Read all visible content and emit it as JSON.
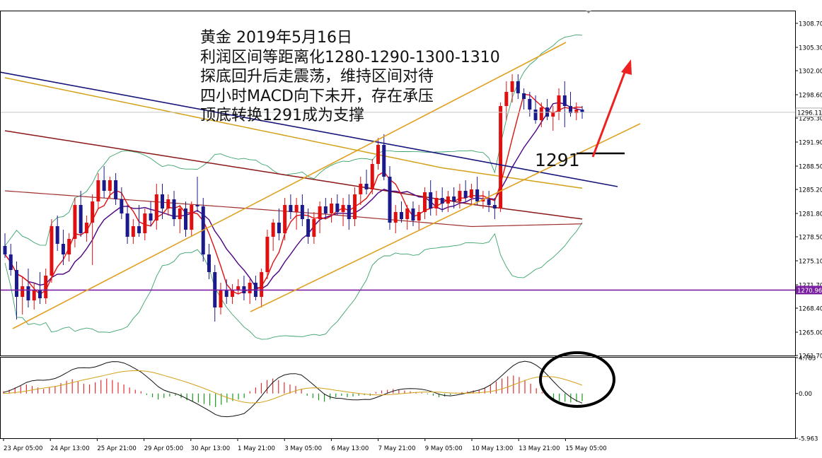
{
  "annotation": {
    "lines": [
      "黄金 2019年5月16日",
      "利润区间等距离化1280-1290-1300-1310",
      "探底回升后走震荡，维持区间对待",
      "四小时MACD向下未开，存在承压",
      "顶底转换1291成为支撑"
    ],
    "level_label": "1291"
  },
  "chart_data": [
    {
      "type": "candlestick",
      "title": "",
      "y_ticks": [
        "1308.70",
        "1305.30",
        "1302.00",
        "1298.60",
        "1295.30",
        "1291.90",
        "1288.50",
        "1285.20",
        "1281.80",
        "1278.50",
        "1275.10",
        "1271.70",
        "1268.40",
        "1265.00",
        "1261.70"
      ],
      "ylim": [
        1261.7,
        1310.5
      ],
      "current_price_label": "1296.11",
      "current_price": 1296.11,
      "support_price_label": "1270.96",
      "support_price": 1270.96,
      "candles": [
        {
          "o": 1277.2,
          "h": 1279.0,
          "l": 1275.5,
          "c": 1276.0
        },
        {
          "o": 1276.0,
          "h": 1277.5,
          "l": 1273.0,
          "c": 1273.8
        },
        {
          "o": 1273.8,
          "h": 1275.0,
          "l": 1266.8,
          "c": 1270.0
        },
        {
          "o": 1270.0,
          "h": 1272.8,
          "l": 1267.5,
          "c": 1271.5
        },
        {
          "o": 1271.5,
          "h": 1274.0,
          "l": 1268.5,
          "c": 1269.5
        },
        {
          "o": 1269.5,
          "h": 1272.0,
          "l": 1268.2,
          "c": 1271.0
        },
        {
          "o": 1271.0,
          "h": 1273.5,
          "l": 1269.0,
          "c": 1269.8
        },
        {
          "o": 1269.8,
          "h": 1274.0,
          "l": 1269.0,
          "c": 1273.0
        },
        {
          "o": 1273.0,
          "h": 1281.0,
          "l": 1272.0,
          "c": 1280.0
        },
        {
          "o": 1280.0,
          "h": 1281.5,
          "l": 1276.5,
          "c": 1277.5
        },
        {
          "o": 1277.5,
          "h": 1279.5,
          "l": 1274.5,
          "c": 1276.0
        },
        {
          "o": 1276.0,
          "h": 1279.0,
          "l": 1275.0,
          "c": 1278.2
        },
        {
          "o": 1278.2,
          "h": 1284.0,
          "l": 1277.0,
          "c": 1283.0
        },
        {
          "o": 1283.0,
          "h": 1285.0,
          "l": 1278.5,
          "c": 1279.0
        },
        {
          "o": 1279.0,
          "h": 1281.5,
          "l": 1277.8,
          "c": 1280.5
        },
        {
          "o": 1280.5,
          "h": 1284.5,
          "l": 1274.5,
          "c": 1283.5
        },
        {
          "o": 1283.5,
          "h": 1287.5,
          "l": 1282.5,
          "c": 1286.5
        },
        {
          "o": 1286.5,
          "h": 1288.5,
          "l": 1284.0,
          "c": 1285.0
        },
        {
          "o": 1285.0,
          "h": 1287.0,
          "l": 1284.0,
          "c": 1286.5
        },
        {
          "o": 1286.5,
          "h": 1287.5,
          "l": 1283.0,
          "c": 1283.8
        },
        {
          "o": 1283.8,
          "h": 1285.5,
          "l": 1281.0,
          "c": 1281.8
        },
        {
          "o": 1281.8,
          "h": 1283.0,
          "l": 1277.5,
          "c": 1278.5
        },
        {
          "o": 1278.5,
          "h": 1281.0,
          "l": 1277.5,
          "c": 1280.0
        },
        {
          "o": 1280.0,
          "h": 1283.0,
          "l": 1278.5,
          "c": 1279.0
        },
        {
          "o": 1279.0,
          "h": 1282.5,
          "l": 1278.0,
          "c": 1281.8
        },
        {
          "o": 1281.8,
          "h": 1283.5,
          "l": 1280.0,
          "c": 1280.8
        },
        {
          "o": 1280.8,
          "h": 1286.0,
          "l": 1279.5,
          "c": 1284.5
        },
        {
          "o": 1284.5,
          "h": 1286.0,
          "l": 1281.0,
          "c": 1282.5
        },
        {
          "o": 1282.5,
          "h": 1284.5,
          "l": 1281.5,
          "c": 1283.8
        },
        {
          "o": 1283.8,
          "h": 1285.0,
          "l": 1280.0,
          "c": 1281.0
        },
        {
          "o": 1281.0,
          "h": 1283.0,
          "l": 1279.0,
          "c": 1282.5
        },
        {
          "o": 1282.5,
          "h": 1283.5,
          "l": 1278.5,
          "c": 1279.5
        },
        {
          "o": 1279.5,
          "h": 1283.5,
          "l": 1278.5,
          "c": 1283.0
        },
        {
          "o": 1283.0,
          "h": 1287.0,
          "l": 1282.0,
          "c": 1282.8
        },
        {
          "o": 1282.8,
          "h": 1284.0,
          "l": 1275.0,
          "c": 1276.0
        },
        {
          "o": 1276.0,
          "h": 1277.5,
          "l": 1272.5,
          "c": 1273.5
        },
        {
          "o": 1273.5,
          "h": 1274.5,
          "l": 1266.5,
          "c": 1268.5
        },
        {
          "o": 1268.5,
          "h": 1272.0,
          "l": 1267.5,
          "c": 1271.0
        },
        {
          "o": 1271.0,
          "h": 1272.5,
          "l": 1269.0,
          "c": 1270.0
        },
        {
          "o": 1270.0,
          "h": 1271.8,
          "l": 1269.0,
          "c": 1271.0
        },
        {
          "o": 1271.0,
          "h": 1272.5,
          "l": 1270.5,
          "c": 1271.5
        },
        {
          "o": 1271.5,
          "h": 1273.0,
          "l": 1269.5,
          "c": 1270.5
        },
        {
          "o": 1270.5,
          "h": 1272.5,
          "l": 1269.0,
          "c": 1272.0
        },
        {
          "o": 1272.0,
          "h": 1273.0,
          "l": 1269.5,
          "c": 1270.0
        },
        {
          "o": 1270.0,
          "h": 1274.0,
          "l": 1268.5,
          "c": 1273.5
        },
        {
          "o": 1273.5,
          "h": 1279.5,
          "l": 1272.5,
          "c": 1278.5
        },
        {
          "o": 1278.5,
          "h": 1281.0,
          "l": 1276.5,
          "c": 1280.5
        },
        {
          "o": 1280.5,
          "h": 1282.5,
          "l": 1278.0,
          "c": 1279.0
        },
        {
          "o": 1279.0,
          "h": 1284.0,
          "l": 1278.0,
          "c": 1283.0
        },
        {
          "o": 1283.0,
          "h": 1284.5,
          "l": 1281.0,
          "c": 1282.0
        },
        {
          "o": 1282.0,
          "h": 1284.0,
          "l": 1279.5,
          "c": 1283.0
        },
        {
          "o": 1283.0,
          "h": 1284.5,
          "l": 1280.0,
          "c": 1281.0
        },
        {
          "o": 1281.0,
          "h": 1282.5,
          "l": 1277.5,
          "c": 1278.5
        },
        {
          "o": 1278.5,
          "h": 1282.0,
          "l": 1277.5,
          "c": 1281.0
        },
        {
          "o": 1281.0,
          "h": 1283.5,
          "l": 1279.0,
          "c": 1282.8
        },
        {
          "o": 1282.8,
          "h": 1284.0,
          "l": 1281.0,
          "c": 1281.8
        },
        {
          "o": 1281.8,
          "h": 1284.0,
          "l": 1280.5,
          "c": 1283.2
        },
        {
          "o": 1283.2,
          "h": 1284.5,
          "l": 1281.5,
          "c": 1282.0
        },
        {
          "o": 1282.0,
          "h": 1284.0,
          "l": 1280.0,
          "c": 1283.0
        },
        {
          "o": 1283.0,
          "h": 1284.5,
          "l": 1279.5,
          "c": 1281.0
        },
        {
          "o": 1281.0,
          "h": 1285.5,
          "l": 1280.0,
          "c": 1284.5
        },
        {
          "o": 1284.5,
          "h": 1287.0,
          "l": 1283.0,
          "c": 1286.0
        },
        {
          "o": 1286.0,
          "h": 1288.0,
          "l": 1284.5,
          "c": 1285.2
        },
        {
          "o": 1285.2,
          "h": 1289.5,
          "l": 1284.5,
          "c": 1288.8
        },
        {
          "o": 1288.8,
          "h": 1292.5,
          "l": 1288.0,
          "c": 1291.5
        },
        {
          "o": 1291.5,
          "h": 1293.0,
          "l": 1286.5,
          "c": 1287.0
        },
        {
          "o": 1287.0,
          "h": 1288.5,
          "l": 1279.5,
          "c": 1280.5
        },
        {
          "o": 1280.5,
          "h": 1283.0,
          "l": 1279.0,
          "c": 1282.0
        },
        {
          "o": 1282.0,
          "h": 1283.5,
          "l": 1280.5,
          "c": 1281.0
        },
        {
          "o": 1281.0,
          "h": 1283.0,
          "l": 1279.5,
          "c": 1282.5
        },
        {
          "o": 1282.5,
          "h": 1283.5,
          "l": 1280.0,
          "c": 1280.8
        },
        {
          "o": 1280.8,
          "h": 1283.0,
          "l": 1279.5,
          "c": 1282.0
        },
        {
          "o": 1282.0,
          "h": 1285.5,
          "l": 1281.0,
          "c": 1284.8
        },
        {
          "o": 1284.8,
          "h": 1286.5,
          "l": 1281.5,
          "c": 1282.5
        },
        {
          "o": 1282.5,
          "h": 1285.0,
          "l": 1281.5,
          "c": 1284.0
        },
        {
          "o": 1284.0,
          "h": 1285.5,
          "l": 1282.0,
          "c": 1283.2
        },
        {
          "o": 1283.2,
          "h": 1285.0,
          "l": 1282.0,
          "c": 1284.2
        },
        {
          "o": 1284.2,
          "h": 1285.5,
          "l": 1282.5,
          "c": 1283.5
        },
        {
          "o": 1283.5,
          "h": 1286.0,
          "l": 1282.5,
          "c": 1285.0
        },
        {
          "o": 1285.0,
          "h": 1286.5,
          "l": 1283.5,
          "c": 1284.0
        },
        {
          "o": 1284.0,
          "h": 1286.0,
          "l": 1283.0,
          "c": 1285.2
        },
        {
          "o": 1285.2,
          "h": 1287.0,
          "l": 1283.0,
          "c": 1283.5
        },
        {
          "o": 1283.5,
          "h": 1285.0,
          "l": 1282.5,
          "c": 1283.8
        },
        {
          "o": 1283.8,
          "h": 1285.0,
          "l": 1282.0,
          "c": 1283.0
        },
        {
          "o": 1283.0,
          "h": 1284.0,
          "l": 1281.0,
          "c": 1282.5
        },
        {
          "o": 1282.5,
          "h": 1297.5,
          "l": 1282.0,
          "c": 1297.0
        },
        {
          "o": 1297.0,
          "h": 1300.5,
          "l": 1295.0,
          "c": 1299.0
        },
        {
          "o": 1299.0,
          "h": 1301.5,
          "l": 1297.5,
          "c": 1300.5
        },
        {
          "o": 1300.5,
          "h": 1301.5,
          "l": 1298.0,
          "c": 1298.8
        },
        {
          "o": 1298.8,
          "h": 1299.5,
          "l": 1296.5,
          "c": 1298.0
        },
        {
          "o": 1298.0,
          "h": 1299.0,
          "l": 1295.5,
          "c": 1296.5
        },
        {
          "o": 1296.5,
          "h": 1298.5,
          "l": 1294.5,
          "c": 1295.0
        },
        {
          "o": 1295.0,
          "h": 1297.5,
          "l": 1294.0,
          "c": 1296.8
        },
        {
          "o": 1296.8,
          "h": 1298.0,
          "l": 1295.0,
          "c": 1295.5
        },
        {
          "o": 1295.5,
          "h": 1297.0,
          "l": 1293.5,
          "c": 1296.2
        },
        {
          "o": 1296.2,
          "h": 1299.5,
          "l": 1295.0,
          "c": 1298.5
        },
        {
          "o": 1298.5,
          "h": 1300.5,
          "l": 1294.0,
          "c": 1297.0
        },
        {
          "o": 1297.0,
          "h": 1299.0,
          "l": 1295.5,
          "c": 1296.0
        },
        {
          "o": 1296.0,
          "h": 1297.5,
          "l": 1295.0,
          "c": 1296.5
        },
        {
          "o": 1296.5,
          "h": 1297.0,
          "l": 1295.2,
          "c": 1296.1
        }
      ]
    },
    {
      "type": "bar",
      "title": "",
      "y_ticks": [
        "4.783",
        "0.00",
        "-5.963"
      ],
      "ylim": [
        -5.963,
        4.783
      ],
      "x_ticks": [
        "23 Apr 05:00",
        "24 Apr 13:00",
        "25 Apr 21:00",
        "29 Apr 05:00",
        "30 Apr 13:00",
        "1 May 21:00",
        "3 May 05:00",
        "6 May 13:00",
        "7 May 21:00",
        "9 May 05:00",
        "10 May 13:00",
        "13 May 21:00",
        "15 May 05:00"
      ],
      "histogram": [
        0.3,
        0.5,
        0.8,
        1.0,
        1.2,
        1.0,
        0.8,
        0.6,
        0.8,
        1.0,
        1.4,
        1.7,
        1.9,
        1.6,
        1.3,
        1.2,
        1.5,
        1.8,
        2.0,
        1.8,
        1.5,
        1.2,
        0.8,
        0.5,
        0.3,
        -0.2,
        -0.5,
        -0.8,
        -0.6,
        -0.4,
        -0.3,
        -0.6,
        -0.9,
        -1.0,
        -1.2,
        -1.4,
        -1.6,
        -1.8,
        -1.5,
        -1.2,
        -1.0,
        -0.8,
        -0.6,
        0.3,
        0.8,
        1.4,
        1.8,
        2.0,
        1.8,
        1.5,
        1.2,
        1.0,
        0.6,
        -0.3,
        -0.6,
        -0.9,
        -1.1,
        -0.8,
        -0.5,
        -0.3,
        -0.5,
        -0.4,
        -0.3,
        -0.2,
        -0.3,
        0.2,
        0.4,
        0.5,
        0.6,
        0.5,
        0.4,
        0.3,
        0.2,
        0.1,
        -0.1,
        -0.3,
        -0.5,
        -0.4,
        -0.2,
        0.1,
        0.2,
        0.3,
        0.4,
        0.5,
        0.7,
        1.1,
        1.6,
        2.0,
        2.3,
        2.4,
        2.2,
        1.8,
        1.3,
        0.7,
        0.2,
        -0.4,
        -0.8,
        -1.0,
        -1.1,
        -1.2,
        -1.1,
        -1.0
      ]
    }
  ]
}
